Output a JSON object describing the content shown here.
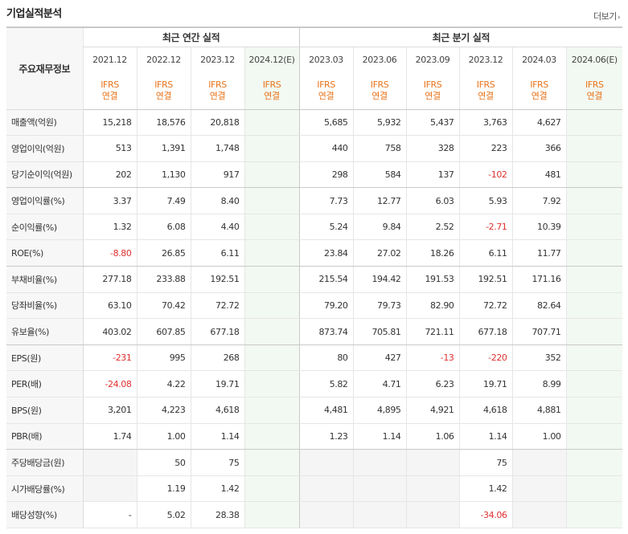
{
  "section_title": "기업실적분석",
  "more_label": "더보기",
  "row_header": "주요재무정보",
  "annual_group": "최근 연간 실적",
  "quarter_group": "최근 분기 실적",
  "annual_periods": [
    "2021.12",
    "2022.12",
    "2023.12",
    "2024.12(E)"
  ],
  "quarter_periods": [
    "2023.03",
    "2023.06",
    "2023.09",
    "2023.12",
    "2024.03",
    "2024.06(E)"
  ],
  "ifrs_top": "IFRS",
  "ifrs_bottom": "연결",
  "rows": [
    {
      "label": "매출액(억원)",
      "annual": [
        "15,218",
        "18,576",
        "20,818",
        ""
      ],
      "quarter": [
        "5,685",
        "5,932",
        "5,437",
        "3,763",
        "4,627",
        ""
      ]
    },
    {
      "label": "영업이익(억원)",
      "annual": [
        "513",
        "1,391",
        "1,748",
        ""
      ],
      "quarter": [
        "440",
        "758",
        "328",
        "223",
        "366",
        ""
      ]
    },
    {
      "label": "당기순이익(억원)",
      "annual": [
        "202",
        "1,130",
        "917",
        ""
      ],
      "quarter": [
        "298",
        "584",
        "137",
        "-102",
        "481",
        ""
      ]
    },
    {
      "label": "영업이익률(%)",
      "annual": [
        "3.37",
        "7.49",
        "8.40",
        ""
      ],
      "quarter": [
        "7.73",
        "12.77",
        "6.03",
        "5.93",
        "7.92",
        ""
      ]
    },
    {
      "label": "순이익률(%)",
      "annual": [
        "1.32",
        "6.08",
        "4.40",
        ""
      ],
      "quarter": [
        "5.24",
        "9.84",
        "2.52",
        "-2.71",
        "10.39",
        ""
      ]
    },
    {
      "label": "ROE(%)",
      "annual": [
        "-8.80",
        "26.85",
        "6.11",
        ""
      ],
      "quarter": [
        "23.84",
        "27.02",
        "18.26",
        "6.11",
        "11.77",
        ""
      ]
    },
    {
      "label": "부채비율(%)",
      "annual": [
        "277.18",
        "233.88",
        "192.51",
        ""
      ],
      "quarter": [
        "215.54",
        "194.42",
        "191.53",
        "192.51",
        "171.16",
        ""
      ]
    },
    {
      "label": "당좌비율(%)",
      "annual": [
        "63.10",
        "70.42",
        "72.72",
        ""
      ],
      "quarter": [
        "79.20",
        "79.73",
        "82.90",
        "72.72",
        "82.64",
        ""
      ]
    },
    {
      "label": "유보율(%)",
      "annual": [
        "403.02",
        "607.85",
        "677.18",
        ""
      ],
      "quarter": [
        "873.74",
        "705.81",
        "721.11",
        "677.18",
        "707.71",
        ""
      ]
    },
    {
      "label": "EPS(원)",
      "annual": [
        "-231",
        "995",
        "268",
        ""
      ],
      "quarter": [
        "80",
        "427",
        "-13",
        "-220",
        "352",
        ""
      ]
    },
    {
      "label": "PER(배)",
      "annual": [
        "-24.08",
        "4.22",
        "19.71",
        ""
      ],
      "quarter": [
        "5.82",
        "4.71",
        "6.23",
        "19.71",
        "8.99",
        ""
      ]
    },
    {
      "label": "BPS(원)",
      "annual": [
        "3,201",
        "4,223",
        "4,618",
        ""
      ],
      "quarter": [
        "4,481",
        "4,895",
        "4,921",
        "4,618",
        "4,881",
        ""
      ]
    },
    {
      "label": "PBR(배)",
      "annual": [
        "1.74",
        "1.00",
        "1.14",
        ""
      ],
      "quarter": [
        "1.23",
        "1.14",
        "1.06",
        "1.14",
        "1.00",
        ""
      ]
    },
    {
      "label": "주당배당금(원)",
      "annual": [
        "",
        "50",
        "75",
        ""
      ],
      "quarter": [
        "",
        "",
        "",
        "75",
        "",
        ""
      ]
    },
    {
      "label": "시가배당률(%)",
      "annual": [
        "",
        "1.19",
        "1.42",
        ""
      ],
      "quarter": [
        "",
        "",
        "",
        "1.42",
        "",
        ""
      ]
    },
    {
      "label": "배당성향(%)",
      "annual": [
        "-",
        "5.02",
        "28.38",
        ""
      ],
      "quarter": [
        "",
        "",
        "",
        "-34.06",
        "",
        ""
      ]
    }
  ],
  "colors": {
    "ifrs": "#e8731a",
    "negative": "#e03030",
    "estimate_bg": "#f2f9f2",
    "blank_bg": "#f5f5f5"
  }
}
